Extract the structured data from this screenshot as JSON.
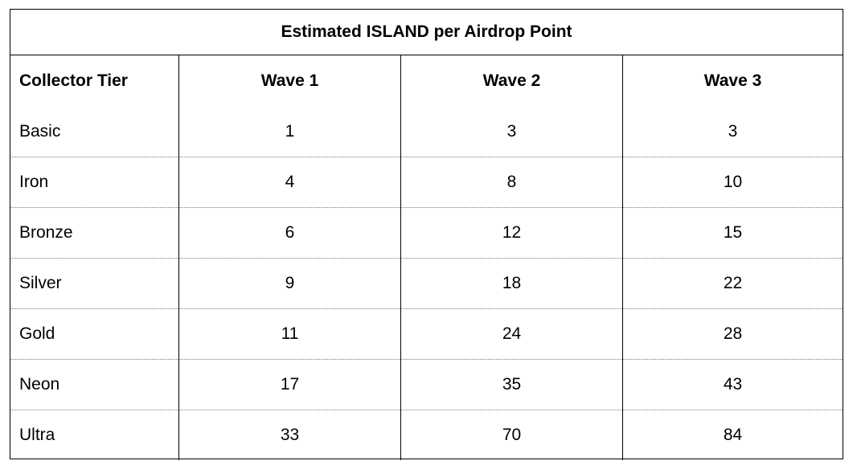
{
  "table": {
    "title": "Estimated ISLAND per Airdrop Point",
    "header": [
      "Collector Tier",
      "Wave 1",
      "Wave 2",
      "Wave 3"
    ],
    "rows": [
      [
        "Basic",
        1,
        3,
        3
      ],
      [
        "Iron",
        4,
        8,
        10
      ],
      [
        "Bronze",
        6,
        12,
        15
      ],
      [
        "Silver",
        9,
        18,
        22
      ],
      [
        "Gold",
        11,
        24,
        28
      ],
      [
        "Neon",
        17,
        35,
        43
      ],
      [
        "Ultra",
        33,
        70,
        84
      ]
    ]
  }
}
